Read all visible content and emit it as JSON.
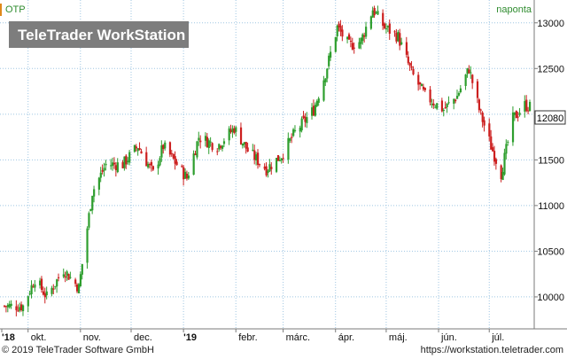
{
  "chart_data": {
    "type": "candlestick",
    "symbol": "OTP",
    "period_label": "naponta",
    "watermark": "TeleTrader WorkStation",
    "last_price": "12080",
    "y_ticks": [
      10000,
      10500,
      11000,
      11500,
      12000,
      12500,
      13000
    ],
    "ylim": [
      9650,
      13250
    ],
    "grid": true,
    "x_labels": [
      "'18",
      "okt.",
      "nov.",
      "dec.",
      "'19",
      "febr.",
      "márc.",
      "ápr.",
      "máj.",
      "jún.",
      "júl."
    ],
    "colors": {
      "up": "#2e9e2e",
      "down": "#cc1f1f",
      "grid": "#9fc6e2",
      "watermark_bg": "#7d7d7d",
      "last_price_bg": "#ffffff"
    },
    "approx_close_path": [
      {
        "x": "2018-09-17",
        "y": 9900
      },
      {
        "x": "2018-09-28",
        "y": 9900
      },
      {
        "x": "2018-10-05",
        "y": 10200
      },
      {
        "x": "2018-10-12",
        "y": 10000
      },
      {
        "x": "2018-10-22",
        "y": 10300
      },
      {
        "x": "2018-10-31",
        "y": 10100
      },
      {
        "x": "2018-11-08",
        "y": 11150
      },
      {
        "x": "2018-11-16",
        "y": 11450
      },
      {
        "x": "2018-11-26",
        "y": 11450
      },
      {
        "x": "2018-12-05",
        "y": 11650
      },
      {
        "x": "2018-12-14",
        "y": 11350
      },
      {
        "x": "2018-12-20",
        "y": 11650
      },
      {
        "x": "2019-01-03",
        "y": 11300
      },
      {
        "x": "2019-01-10",
        "y": 11750
      },
      {
        "x": "2019-01-21",
        "y": 11650
      },
      {
        "x": "2019-01-31",
        "y": 11850
      },
      {
        "x": "2019-02-08",
        "y": 11600
      },
      {
        "x": "2019-02-19",
        "y": 11400
      },
      {
        "x": "2019-02-28",
        "y": 11550
      },
      {
        "x": "2019-03-08",
        "y": 11800
      },
      {
        "x": "2019-03-19",
        "y": 12050
      },
      {
        "x": "2019-03-26",
        "y": 12450
      },
      {
        "x": "2019-04-02",
        "y": 12950
      },
      {
        "x": "2019-04-09",
        "y": 12750
      },
      {
        "x": "2019-04-16",
        "y": 12800
      },
      {
        "x": "2019-04-23",
        "y": 13150
      },
      {
        "x": "2019-04-30",
        "y": 12950
      },
      {
        "x": "2019-05-08",
        "y": 12850
      },
      {
        "x": "2019-05-16",
        "y": 12450
      },
      {
        "x": "2019-05-24",
        "y": 12200
      },
      {
        "x": "2019-06-04",
        "y": 12050
      },
      {
        "x": "2019-06-12",
        "y": 12200
      },
      {
        "x": "2019-06-19",
        "y": 12500
      },
      {
        "x": "2019-06-25",
        "y": 12050
      },
      {
        "x": "2019-07-02",
        "y": 11650
      },
      {
        "x": "2019-07-08",
        "y": 11350
      },
      {
        "x": "2019-07-15",
        "y": 11950
      },
      {
        "x": "2019-07-22",
        "y": 12100
      },
      {
        "x": "2019-07-25",
        "y": 12080
      }
    ]
  },
  "footer": {
    "copyright": "© 2019 TeleTrader Software GmbH",
    "url": "https://workstation.teletrader.com"
  }
}
